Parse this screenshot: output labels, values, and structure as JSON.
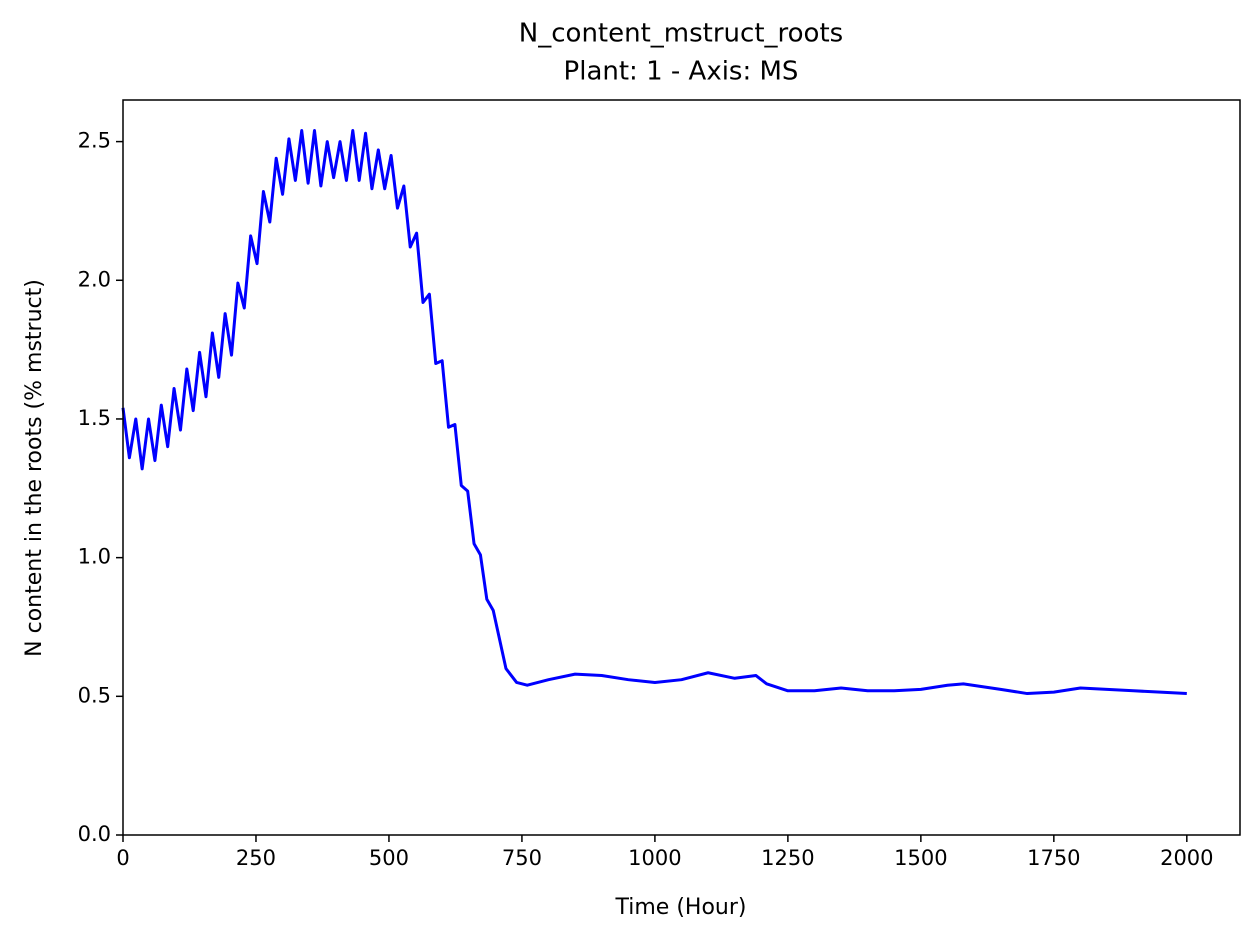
{
  "chart_data": {
    "type": "line",
    "title": "N_content_mstruct_roots",
    "subtitle": "Plant: 1 - Axis: MS",
    "xlabel": "Time (Hour)",
    "ylabel": "N content in the roots (% mstruct)",
    "color": "#0000ff",
    "x": [
      0,
      12,
      24,
      36,
      48,
      60,
      72,
      84,
      96,
      108,
      120,
      132,
      144,
      156,
      168,
      180,
      192,
      204,
      216,
      228,
      240,
      252,
      264,
      276,
      288,
      300,
      312,
      324,
      336,
      348,
      360,
      372,
      384,
      396,
      408,
      420,
      432,
      444,
      456,
      468,
      480,
      492,
      504,
      516,
      528,
      540,
      552,
      564,
      576,
      588,
      600,
      612,
      624,
      636,
      648,
      660,
      672,
      684,
      696,
      720,
      740,
      760,
      780,
      800,
      850,
      900,
      950,
      1000,
      1050,
      1100,
      1150,
      1190,
      1210,
      1250,
      1300,
      1350,
      1400,
      1450,
      1500,
      1550,
      1580,
      1650,
      1700,
      1750,
      1800,
      1850,
      1900,
      1950,
      2000
    ],
    "values": [
      1.54,
      1.36,
      1.5,
      1.32,
      1.5,
      1.35,
      1.55,
      1.4,
      1.61,
      1.46,
      1.68,
      1.53,
      1.74,
      1.58,
      1.81,
      1.65,
      1.88,
      1.73,
      1.99,
      1.9,
      2.16,
      2.06,
      2.32,
      2.21,
      2.44,
      2.31,
      2.51,
      2.36,
      2.54,
      2.35,
      2.54,
      2.34,
      2.5,
      2.37,
      2.5,
      2.36,
      2.54,
      2.36,
      2.53,
      2.33,
      2.47,
      2.33,
      2.45,
      2.26,
      2.34,
      2.12,
      2.17,
      1.92,
      1.95,
      1.7,
      1.71,
      1.47,
      1.48,
      1.26,
      1.24,
      1.05,
      1.01,
      0.85,
      0.81,
      0.6,
      0.55,
      0.54,
      0.55,
      0.56,
      0.58,
      0.575,
      0.56,
      0.55,
      0.56,
      0.585,
      0.565,
      0.575,
      0.545,
      0.52,
      0.52,
      0.53,
      0.52,
      0.52,
      0.525,
      0.54,
      0.545,
      0.525,
      0.51,
      0.515,
      0.53,
      0.525,
      0.52,
      0.515,
      0.51
    ],
    "xlim": [
      0,
      2100
    ],
    "ylim": [
      0,
      2.65
    ],
    "xticks": [
      0,
      250,
      500,
      750,
      1000,
      1250,
      1500,
      1750,
      2000
    ],
    "yticks": [
      {
        "value": 0,
        "label": "0.0"
      },
      0.5,
      {
        "value": 1,
        "label": "1.0"
      },
      1.5,
      {
        "value": 2,
        "label": "2.0"
      },
      2.5
    ]
  }
}
